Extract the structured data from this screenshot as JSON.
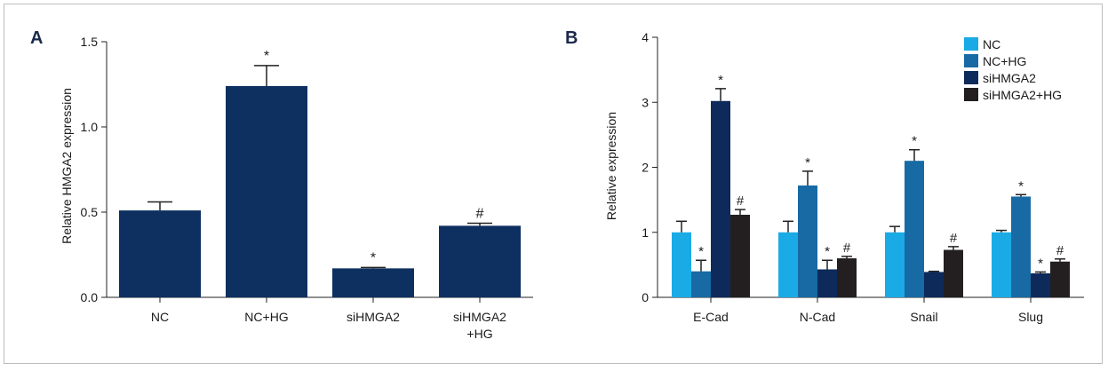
{
  "figure": {
    "colors": {
      "frame": "#bdbdbd",
      "axis": "#222222",
      "text": "#1a1a1a",
      "label": "#1b2a4a"
    }
  },
  "chart_data": [
    {
      "panel": "A",
      "type": "bar",
      "ylabel": "Relative HMGA2 expression",
      "ylim": [
        0,
        1.5
      ],
      "yticks": [
        "0.0",
        "0.5",
        "1.0",
        "1.5"
      ],
      "ytick_values": [
        0,
        0.5,
        1.0,
        1.5
      ],
      "categories": [
        [
          "NC"
        ],
        [
          "NC+HG"
        ],
        [
          "siHMGA2"
        ],
        [
          "siHMGA2",
          "+HG"
        ]
      ],
      "values": [
        0.51,
        1.24,
        0.17,
        0.42
      ],
      "errors": [
        0.05,
        0.12,
        0.005,
        0.015
      ],
      "annotations": [
        "",
        "*",
        "*",
        "#"
      ],
      "color": "#0e3060"
    },
    {
      "panel": "B",
      "type": "bar",
      "ylabel": "Relative expression",
      "ylim": [
        0,
        4
      ],
      "yticks": [
        "0",
        "1",
        "2",
        "3",
        "4"
      ],
      "ytick_values": [
        0,
        1,
        2,
        3,
        4
      ],
      "categories": [
        "E-Cad",
        "N-Cad",
        "Snail",
        "Slug"
      ],
      "legend_position": "top-right",
      "series": [
        {
          "name": "NC",
          "color": "#1aabe6",
          "values": [
            1.0,
            1.0,
            1.0,
            1.0
          ],
          "errors": [
            0.17,
            0.17,
            0.09,
            0.03
          ],
          "annotations": [
            "",
            "",
            "",
            ""
          ]
        },
        {
          "name": "NC+HG",
          "color": "#176aa3",
          "values": [
            0.4,
            1.72,
            2.1,
            1.55
          ],
          "errors": [
            0.17,
            0.22,
            0.17,
            0.03
          ],
          "annotations": [
            "*",
            "*",
            "*",
            "*"
          ]
        },
        {
          "name": "siHMGA2",
          "color": "#0e2a5a",
          "values": [
            3.02,
            0.43,
            0.39,
            0.37
          ],
          "errors": [
            0.19,
            0.14,
            0.01,
            0.02
          ],
          "annotations": [
            "*",
            "*",
            "",
            "*"
          ]
        },
        {
          "name": "siHMGA2+HG",
          "color": "#231f20",
          "values": [
            1.27,
            0.6,
            0.73,
            0.55
          ],
          "errors": [
            0.08,
            0.03,
            0.05,
            0.04
          ],
          "annotations": [
            "#",
            "#",
            "#",
            "#"
          ]
        }
      ]
    }
  ]
}
